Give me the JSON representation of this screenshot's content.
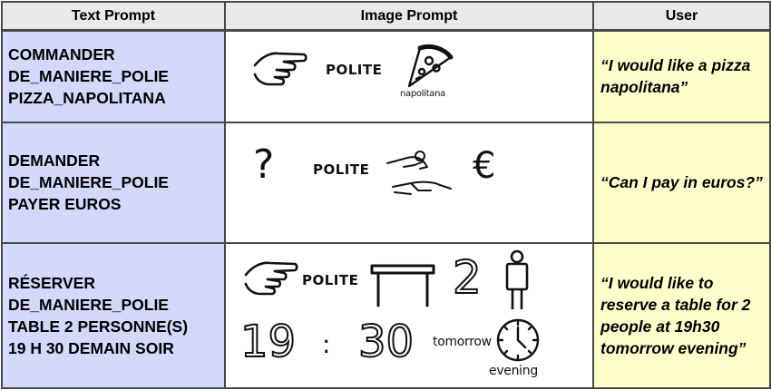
{
  "headers": {
    "text_prompt": "Text Prompt",
    "image_prompt": "Image Prompt",
    "user": "User"
  },
  "rows": [
    {
      "text_prompt": [
        "COMMANDER",
        "DE_MANIERE_POLIE",
        "PIZZA_NAPOLITANA"
      ],
      "pictograms": {
        "polite": "POLITE",
        "napolitana": "napolitana"
      },
      "user": "“I would like a pizza napolitana”"
    },
    {
      "text_prompt": [
        "DEMANDER",
        "DE_MANIERE_POLIE",
        "PAYER EUROS"
      ],
      "pictograms": {
        "question": "?",
        "polite": "POLITE",
        "euro": "€"
      },
      "user": "“Can I pay in euros?”"
    },
    {
      "text_prompt": [
        "RÉSERVER",
        "DE_MANIERE_POLIE",
        "TABLE 2 PERSONNE(S)",
        "19 H 30 DEMAIN SOIR"
      ],
      "pictograms": {
        "polite": "POLITE",
        "two": "2",
        "nineteen": "19",
        "colon": ":",
        "thirty": "30",
        "tomorrow": "tomorrow",
        "evening": "evening"
      },
      "user": "“I would like to reserve a table for 2 people at 19h30 tomorrow evening”"
    }
  ],
  "colors": {
    "header_bg": "#e9e9e9",
    "text_prompt_bg": "#d2d9fa",
    "user_bg": "#ffffcc",
    "border": "#4a4a4a"
  }
}
